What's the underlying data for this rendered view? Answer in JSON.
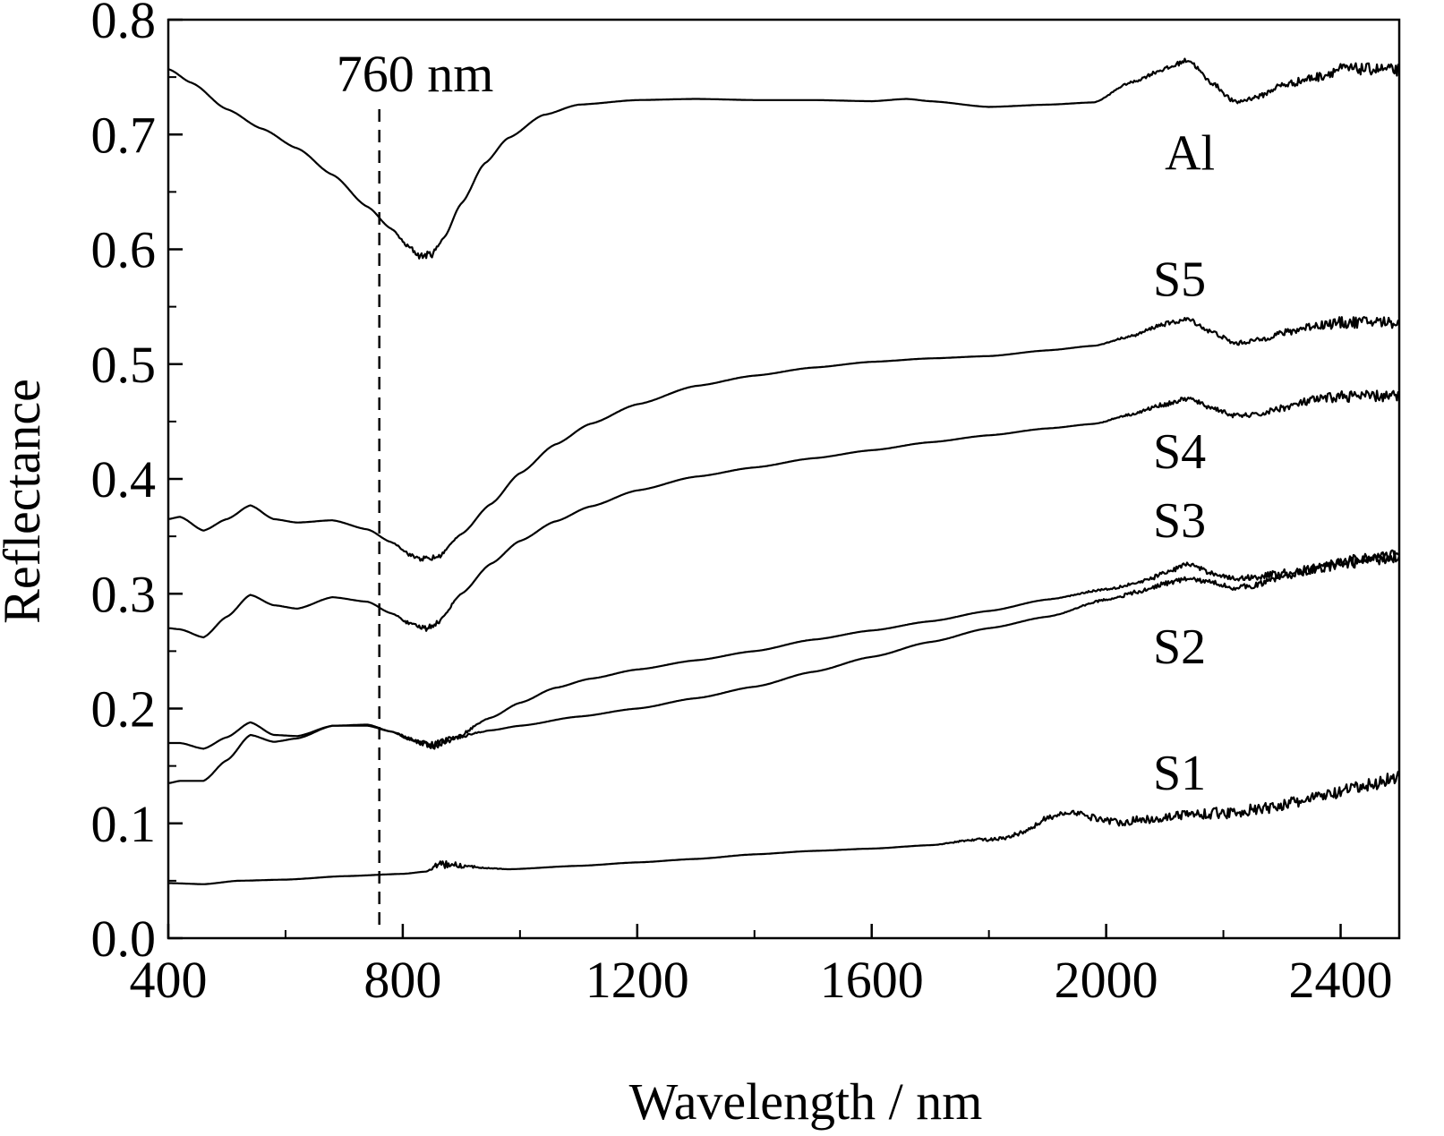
{
  "chart_data": {
    "type": "line",
    "xlabel": "Wavelength / nm",
    "ylabel": "Reflectance",
    "xlim": [
      400,
      2500
    ],
    "ylim": [
      0.0,
      0.8
    ],
    "x_ticks": [
      400,
      800,
      1200,
      1600,
      2000,
      2400
    ],
    "x_tick_labels": [
      "400",
      "800",
      "1200",
      "1600",
      "2000",
      "2400"
    ],
    "x_minor_step": 200,
    "y_ticks": [
      0.0,
      0.1,
      0.2,
      0.3,
      0.4,
      0.5,
      0.6,
      0.7,
      0.8
    ],
    "y_tick_labels": [
      "0.0",
      "0.1",
      "0.2",
      "0.3",
      "0.4",
      "0.5",
      "0.6",
      "0.7",
      "0.8"
    ],
    "y_minor_step": 0.05,
    "grid": false,
    "legend": "none",
    "color": "#000000",
    "annotations": [
      {
        "text": "760 nm",
        "type": "vertical-dashed-line",
        "x": 760
      }
    ],
    "series": [
      {
        "name": "Al",
        "label_at": [
          2100,
          0.685
        ],
        "x": [
          400,
          440,
          500,
          560,
          620,
          680,
          740,
          780,
          810,
          830,
          850,
          870,
          900,
          940,
          980,
          1040,
          1100,
          1200,
          1300,
          1400,
          1500,
          1600,
          1660,
          1700,
          1800,
          1900,
          1980,
          2040,
          2100,
          2140,
          2180,
          2220,
          2260,
          2300,
          2360,
          2400,
          2460,
          2500
        ],
        "y": [
          0.757,
          0.745,
          0.722,
          0.705,
          0.688,
          0.665,
          0.637,
          0.618,
          0.602,
          0.594,
          0.596,
          0.61,
          0.64,
          0.675,
          0.697,
          0.717,
          0.726,
          0.73,
          0.731,
          0.73,
          0.73,
          0.729,
          0.731,
          0.729,
          0.724,
          0.726,
          0.728,
          0.745,
          0.757,
          0.765,
          0.745,
          0.728,
          0.733,
          0.743,
          0.75,
          0.757,
          0.757,
          0.756
        ],
        "noise": [
          0,
          0,
          0,
          0,
          0,
          0,
          0,
          0,
          0.002,
          0.003,
          0.003,
          0,
          0,
          0,
          0,
          0,
          0,
          0,
          0,
          0,
          0,
          0,
          0,
          0,
          0,
          0,
          0,
          0.001,
          0.002,
          0.002,
          0.002,
          0.002,
          0.002,
          0.003,
          0.004,
          0.005,
          0.005,
          0.005
        ]
      },
      {
        "name": "S5",
        "label_at": [
          2080,
          0.575
        ],
        "x": [
          400,
          420,
          460,
          500,
          540,
          580,
          620,
          680,
          740,
          780,
          820,
          840,
          860,
          900,
          950,
          1000,
          1060,
          1120,
          1200,
          1300,
          1400,
          1500,
          1600,
          1700,
          1800,
          1900,
          1980,
          2040,
          2100,
          2140,
          2180,
          2220,
          2260,
          2300,
          2360,
          2400,
          2460,
          2500
        ],
        "y": [
          0.365,
          0.367,
          0.355,
          0.365,
          0.377,
          0.365,
          0.362,
          0.364,
          0.356,
          0.345,
          0.332,
          0.33,
          0.332,
          0.352,
          0.378,
          0.405,
          0.43,
          0.448,
          0.465,
          0.481,
          0.49,
          0.497,
          0.502,
          0.505,
          0.507,
          0.512,
          0.516,
          0.524,
          0.535,
          0.539,
          0.528,
          0.518,
          0.521,
          0.527,
          0.534,
          0.536,
          0.537,
          0.536
        ],
        "noise": [
          0,
          0,
          0,
          0,
          0,
          0,
          0,
          0,
          0,
          0,
          0.002,
          0.003,
          0.002,
          0,
          0,
          0,
          0,
          0,
          0,
          0,
          0,
          0,
          0,
          0,
          0,
          0,
          0,
          0.001,
          0.002,
          0.002,
          0.002,
          0.002,
          0.002,
          0.003,
          0.004,
          0.005,
          0.005,
          0.005
        ]
      },
      {
        "name": "S4",
        "label_at": [
          2080,
          0.425
        ],
        "x": [
          400,
          420,
          460,
          500,
          540,
          580,
          620,
          680,
          740,
          780,
          820,
          840,
          860,
          900,
          950,
          1000,
          1060,
          1120,
          1200,
          1300,
          1400,
          1500,
          1600,
          1700,
          1800,
          1900,
          1980,
          2040,
          2100,
          2140,
          2180,
          2220,
          2260,
          2300,
          2360,
          2400,
          2460,
          2500
        ],
        "y": [
          0.27,
          0.269,
          0.262,
          0.28,
          0.299,
          0.29,
          0.287,
          0.297,
          0.293,
          0.283,
          0.272,
          0.27,
          0.275,
          0.3,
          0.326,
          0.346,
          0.363,
          0.376,
          0.39,
          0.402,
          0.41,
          0.418,
          0.425,
          0.432,
          0.438,
          0.444,
          0.448,
          0.456,
          0.465,
          0.47,
          0.462,
          0.455,
          0.456,
          0.462,
          0.469,
          0.472,
          0.472,
          0.472
        ],
        "noise": [
          0,
          0,
          0,
          0,
          0,
          0,
          0,
          0,
          0,
          0,
          0.002,
          0.003,
          0.002,
          0,
          0,
          0,
          0,
          0,
          0,
          0,
          0,
          0,
          0,
          0,
          0,
          0,
          0,
          0.001,
          0.002,
          0.002,
          0.002,
          0.002,
          0.002,
          0.003,
          0.004,
          0.005,
          0.005,
          0.005
        ]
      },
      {
        "name": "S3",
        "label_at": [
          2080,
          0.365
        ],
        "x": [
          400,
          420,
          460,
          500,
          540,
          580,
          620,
          680,
          740,
          780,
          820,
          850,
          880,
          950,
          1000,
          1060,
          1120,
          1200,
          1300,
          1400,
          1500,
          1600,
          1700,
          1800,
          1900,
          2000,
          2060,
          2100,
          2140,
          2180,
          2220,
          2260,
          2300,
          2360,
          2400,
          2460,
          2500
        ],
        "y": [
          0.17,
          0.17,
          0.165,
          0.175,
          0.188,
          0.177,
          0.176,
          0.185,
          0.186,
          0.18,
          0.172,
          0.167,
          0.172,
          0.192,
          0.205,
          0.218,
          0.226,
          0.234,
          0.242,
          0.25,
          0.26,
          0.268,
          0.276,
          0.285,
          0.295,
          0.304,
          0.31,
          0.318,
          0.326,
          0.318,
          0.313,
          0.315,
          0.318,
          0.322,
          0.326,
          0.33,
          0.333
        ],
        "noise": [
          0,
          0,
          0,
          0,
          0,
          0,
          0,
          0,
          0,
          0,
          0.002,
          0.003,
          0.002,
          0,
          0,
          0,
          0,
          0,
          0,
          0,
          0,
          0,
          0,
          0,
          0,
          0.001,
          0.002,
          0.002,
          0.002,
          0.002,
          0.002,
          0.003,
          0.003,
          0.004,
          0.005,
          0.005,
          0.005
        ]
      },
      {
        "name": "S2",
        "label_at": [
          2080,
          0.255
        ],
        "x": [
          400,
          420,
          460,
          500,
          540,
          580,
          620,
          680,
          740,
          780,
          820,
          850,
          880,
          950,
          1000,
          1100,
          1200,
          1300,
          1400,
          1500,
          1600,
          1700,
          1800,
          1900,
          2000,
          2060,
          2100,
          2140,
          2180,
          2220,
          2260,
          2300,
          2360,
          2400,
          2460,
          2500
        ],
        "y": [
          0.135,
          0.137,
          0.137,
          0.155,
          0.177,
          0.171,
          0.174,
          0.185,
          0.185,
          0.18,
          0.172,
          0.168,
          0.174,
          0.181,
          0.185,
          0.193,
          0.2,
          0.209,
          0.219,
          0.232,
          0.245,
          0.258,
          0.27,
          0.28,
          0.295,
          0.302,
          0.309,
          0.313,
          0.31,
          0.305,
          0.308,
          0.315,
          0.322,
          0.328,
          0.332,
          0.334
        ],
        "noise": [
          0,
          0,
          0,
          0,
          0,
          0,
          0,
          0,
          0,
          0,
          0.002,
          0.003,
          0.002,
          0,
          0,
          0,
          0,
          0,
          0,
          0,
          0,
          0,
          0,
          0,
          0.001,
          0.002,
          0.002,
          0.002,
          0.002,
          0.002,
          0.003,
          0.003,
          0.004,
          0.005,
          0.005,
          0.005
        ]
      },
      {
        "name": "S1",
        "label_at": [
          2080,
          0.145
        ],
        "x": [
          400,
          460,
          520,
          600,
          700,
          800,
          840,
          860,
          880,
          920,
          980,
          1100,
          1200,
          1300,
          1400,
          1500,
          1600,
          1700,
          1780,
          1820,
          1860,
          1900,
          1940,
          1980,
          2020,
          2080,
          2140,
          2200,
          2260,
          2320,
          2380,
          2440,
          2500
        ],
        "y": [
          0.048,
          0.047,
          0.05,
          0.051,
          0.054,
          0.056,
          0.058,
          0.064,
          0.064,
          0.062,
          0.06,
          0.063,
          0.066,
          0.069,
          0.073,
          0.076,
          0.078,
          0.081,
          0.086,
          0.086,
          0.092,
          0.105,
          0.11,
          0.105,
          0.101,
          0.104,
          0.108,
          0.109,
          0.112,
          0.118,
          0.125,
          0.132,
          0.141
        ],
        "noise": [
          0,
          0,
          0,
          0,
          0,
          0,
          0,
          0.003,
          0.003,
          0.001,
          0,
          0,
          0,
          0,
          0,
          0,
          0,
          0,
          0.001,
          0.002,
          0.002,
          0.002,
          0.002,
          0.003,
          0.003,
          0.004,
          0.004,
          0.005,
          0.005,
          0.005,
          0.005,
          0.006,
          0.006
        ]
      }
    ]
  }
}
